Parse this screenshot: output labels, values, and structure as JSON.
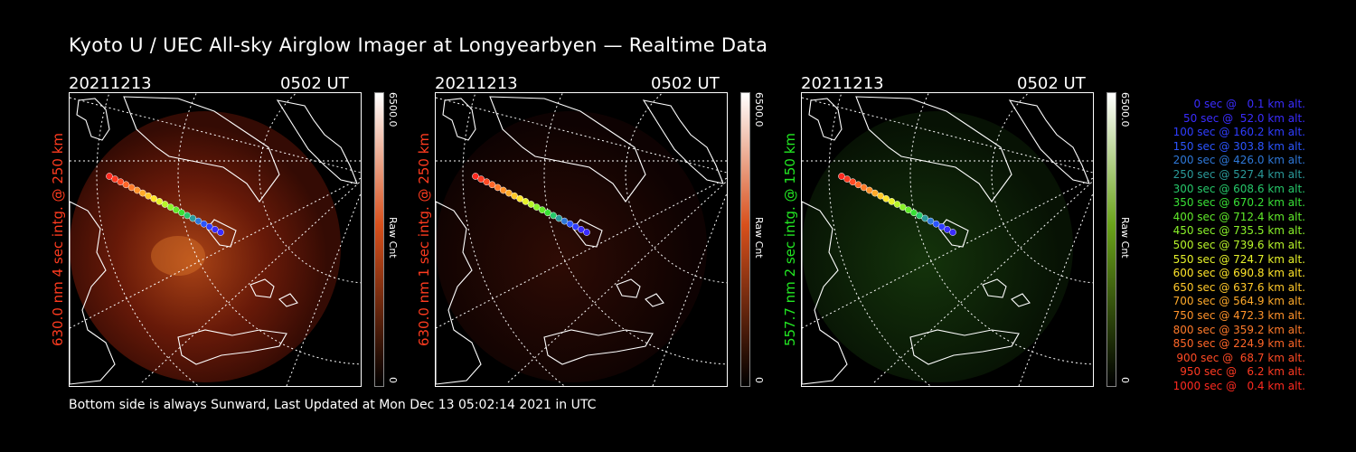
{
  "title": "Kyoto U / UEC All-sky Airglow Imager at Longyearbyen — Realtime Data",
  "panels": [
    {
      "date": "20211213",
      "time": "0502 UT",
      "ylabel": "630.0 nm 4 sec intg. @ 250 km",
      "label_color": "#ff3b1f",
      "cbar_max": "6500.0",
      "cbar_min": "0",
      "cbar_label": "Raw Cnt",
      "cbar_top": "#ffffff",
      "cbar_mid": "#d8501c",
      "cbar_bottom": "#000000"
    },
    {
      "date": "20211213",
      "time": "0502 UT",
      "ylabel": "630.0 nm 1 sec intg. @ 250 km",
      "label_color": "#ff3b1f",
      "cbar_max": "6500.0",
      "cbar_min": "0",
      "cbar_label": "Raw Cnt",
      "cbar_top": "#ffffff",
      "cbar_mid": "#d8501c",
      "cbar_bottom": "#000000"
    },
    {
      "date": "20211213",
      "time": "0502 UT",
      "ylabel": "557.7 nm 2 sec intg. @ 150 km",
      "label_color": "#22e622",
      "cbar_max": "6500.0",
      "cbar_min": "0",
      "cbar_label": "Raw Cnt",
      "cbar_top": "#ffffff",
      "cbar_mid": "#6aa31a",
      "cbar_bottom": "#000000"
    }
  ],
  "legend": [
    {
      "text": "0 sec @   0.1 km alt.",
      "color": "#3a2cff"
    },
    {
      "text": "50 sec @  52.0 km alt.",
      "color": "#3a2cff"
    },
    {
      "text": "100 sec @ 160.2 km alt.",
      "color": "#2f3dff"
    },
    {
      "text": "150 sec @ 303.8 km alt.",
      "color": "#2b55ff"
    },
    {
      "text": "200 sec @ 426.0 km alt.",
      "color": "#2e78d8"
    },
    {
      "text": "250 sec @ 527.4 km alt.",
      "color": "#2a9a9a"
    },
    {
      "text": "300 sec @ 608.6 km alt.",
      "color": "#26c86a"
    },
    {
      "text": "350 sec @ 670.2 km alt.",
      "color": "#39e036"
    },
    {
      "text": "400 sec @ 712.4 km alt.",
      "color": "#60ea2a"
    },
    {
      "text": "450 sec @ 735.5 km alt.",
      "color": "#8af22a"
    },
    {
      "text": "500 sec @ 739.6 km alt.",
      "color": "#b8f52a"
    },
    {
      "text": "550 sec @ 724.7 km alt.",
      "color": "#e6f22a"
    },
    {
      "text": "600 sec @ 690.8 km alt.",
      "color": "#ffe52a"
    },
    {
      "text": "650 sec @ 637.6 km alt.",
      "color": "#ffc82a"
    },
    {
      "text": "700 sec @ 564.9 km alt.",
      "color": "#ffaa2a"
    },
    {
      "text": "750 sec @ 472.3 km alt.",
      "color": "#ff922a"
    },
    {
      "text": "800 sec @ 359.2 km alt.",
      "color": "#ff7a2a"
    },
    {
      "text": "850 sec @ 224.9 km alt.",
      "color": "#ff6628"
    },
    {
      "text": "900 sec @  68.7 km alt.",
      "color": "#ff4a24"
    },
    {
      "text": "950 sec @   6.2 km alt.",
      "color": "#ff3a22"
    },
    {
      "text": "1000 sec @   0.4 km alt.",
      "color": "#ff2a20"
    }
  ],
  "footer": "Bottom side is always Sunward, Last Updated at Mon Dec 13 05:02:14 2021 in UTC"
}
